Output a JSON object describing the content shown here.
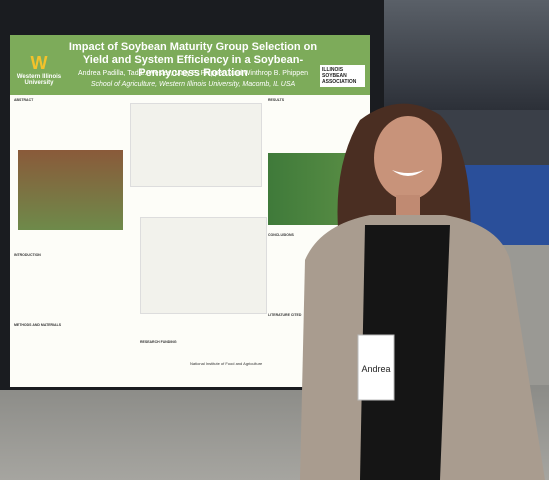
{
  "poster": {
    "title": "Impact of Soybean Maturity Group Selection on Yield and System Efficiency in a Soybean-Pennycress Rotation",
    "authors": "Andrea Padilla, Tad L. Wesley, Mary E. Phippen, and Winthrop B. Phippen",
    "affiliation": "School of Agriculture, Western Illinois University, Macomb, IL USA",
    "university": "Western Illinois University",
    "sponsor": "ILLINOIS SOYBEAN ASSOCIATION",
    "sections": [
      "ABSTRACT",
      "INTRODUCTION",
      "METHODS AND MATERIALS",
      "RESULTS",
      "CONCLUSIONS",
      "LITERATURE CITED",
      "RESEARCH FUNDING"
    ],
    "funder": "National Institute of Food and Agriculture"
  },
  "badge": {
    "name": "Andrea"
  }
}
